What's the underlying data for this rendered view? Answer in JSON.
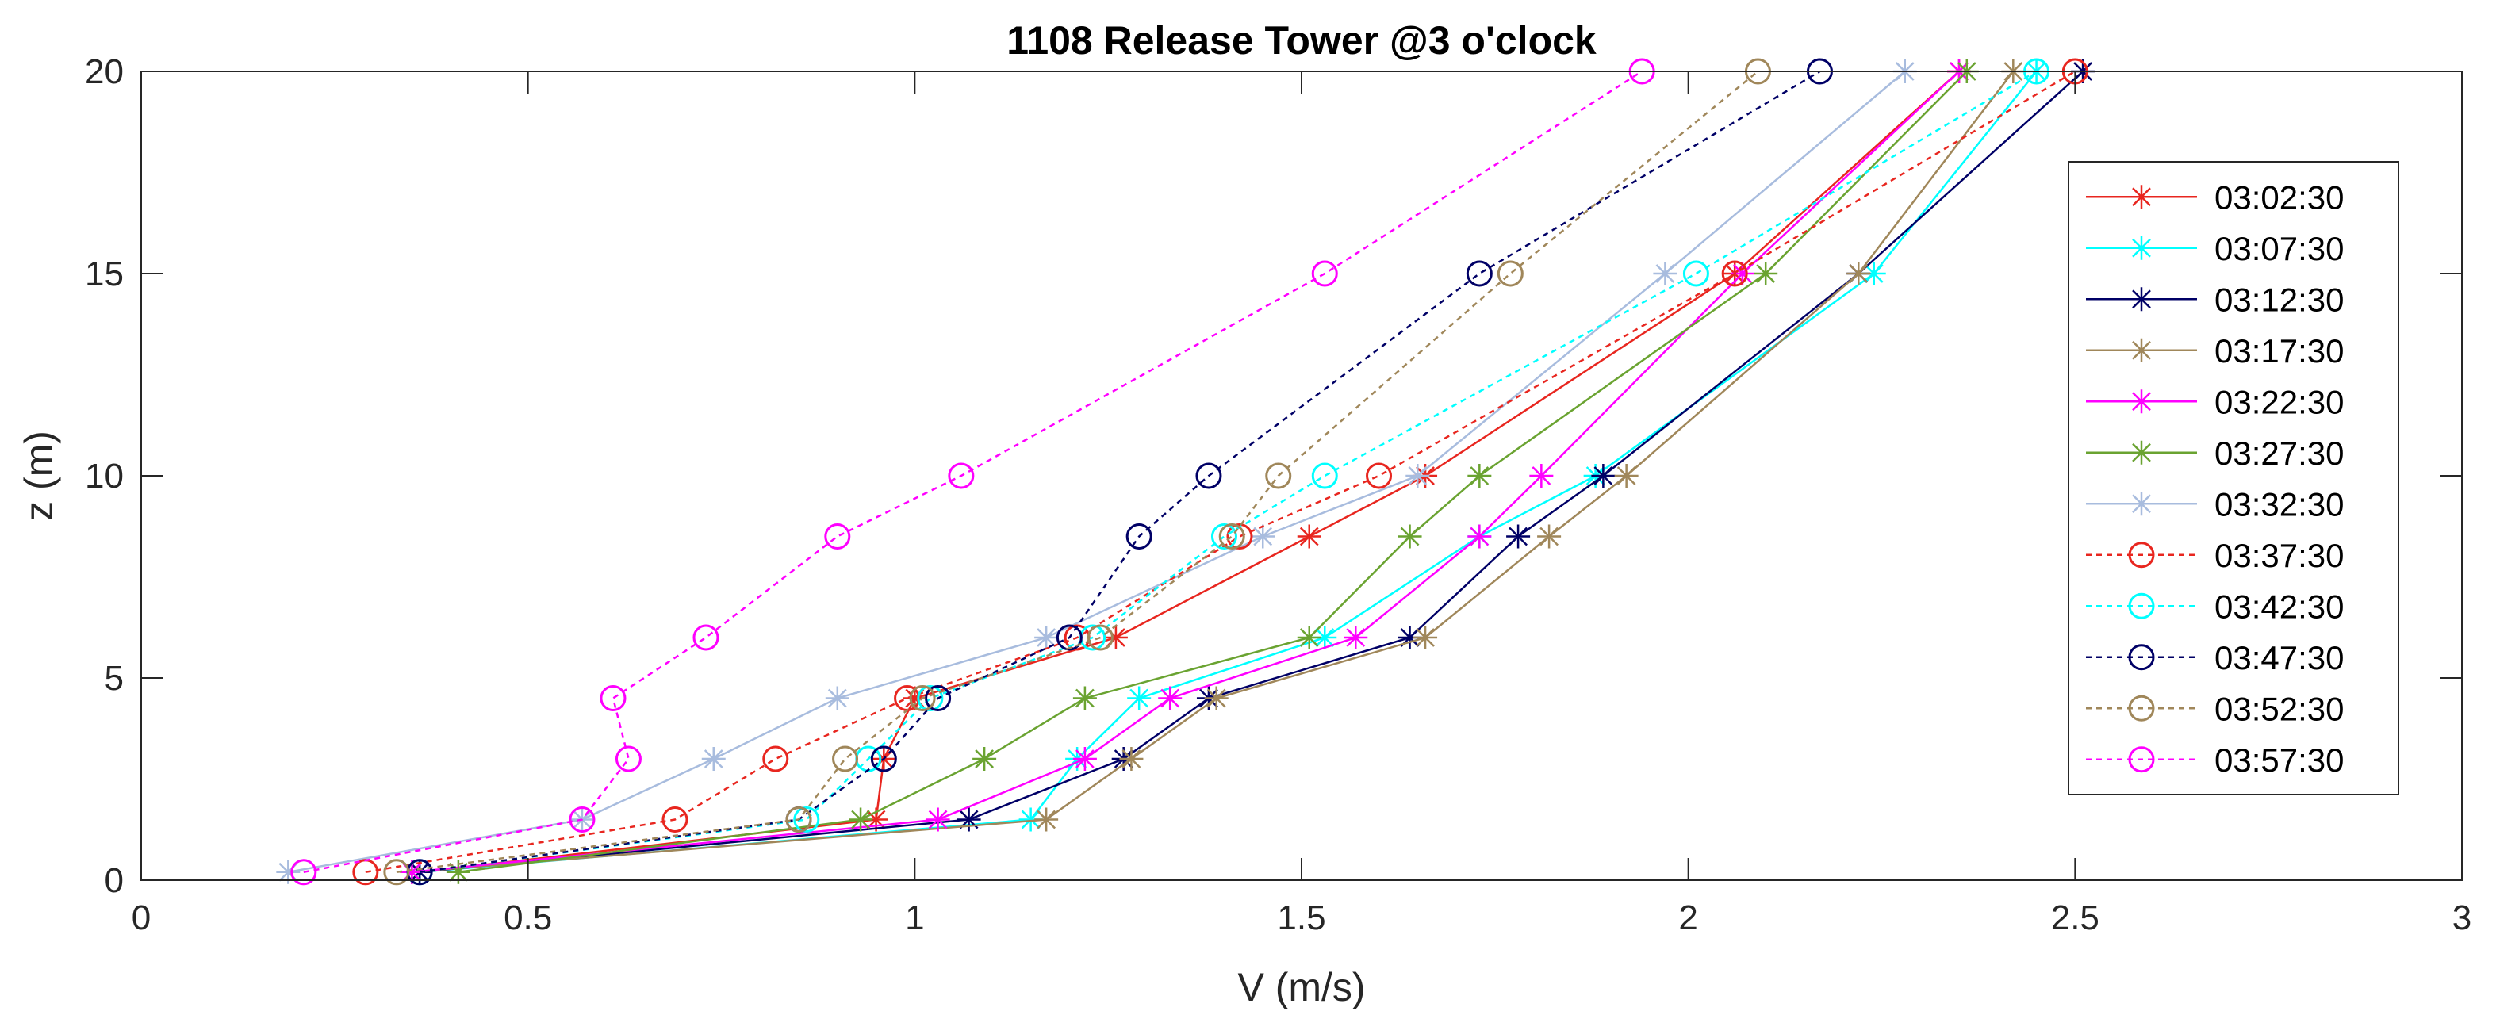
{
  "chart_data": {
    "type": "line",
    "title": "1108 Release Tower @3 o'clock",
    "xlabel": "V (m/s)",
    "ylabel": "z (m)",
    "xlim": [
      0,
      3
    ],
    "ylim": [
      0,
      20
    ],
    "xticks": [
      "0",
      "0.5",
      "1",
      "1.5",
      "2",
      "2.5",
      "3"
    ],
    "yticks": [
      "0",
      "5",
      "10",
      "15",
      "20"
    ],
    "grid": false,
    "legend_position": "right",
    "z": [
      0.2,
      1.5,
      3,
      4.5,
      6,
      8.5,
      10,
      15,
      20
    ],
    "series": [
      {
        "name": "03:02:30",
        "color": "#e8261f",
        "style": "solid",
        "marker": "star",
        "values": [
          0.36,
          0.95,
          0.96,
          1.0,
          1.26,
          1.51,
          1.66,
          2.06,
          2.35
        ]
      },
      {
        "name": "03:07:30",
        "color": "#00ffff",
        "style": "solid",
        "marker": "star",
        "values": [
          0.36,
          1.15,
          1.21,
          1.29,
          1.53,
          1.73,
          1.88,
          2.24,
          2.45
        ]
      },
      {
        "name": "03:12:30",
        "color": "#000066",
        "style": "solid",
        "marker": "star",
        "values": [
          0.36,
          1.07,
          1.27,
          1.38,
          1.64,
          1.78,
          1.89,
          2.22,
          2.51
        ]
      },
      {
        "name": "03:17:30",
        "color": "#a0875a",
        "style": "solid",
        "marker": "star",
        "values": [
          0.35,
          1.17,
          1.28,
          1.39,
          1.66,
          1.82,
          1.92,
          2.22,
          2.42
        ]
      },
      {
        "name": "03:22:30",
        "color": "#ff00ff",
        "style": "solid",
        "marker": "star",
        "values": [
          0.35,
          1.03,
          1.22,
          1.33,
          1.57,
          1.73,
          1.81,
          2.07,
          2.35
        ]
      },
      {
        "name": "03:27:30",
        "color": "#6aa331",
        "style": "solid",
        "marker": "star",
        "values": [
          0.41,
          0.93,
          1.09,
          1.22,
          1.51,
          1.64,
          1.73,
          2.1,
          2.36
        ]
      },
      {
        "name": "03:32:30",
        "color": "#a8bcde",
        "style": "solid",
        "marker": "star",
        "values": [
          0.19,
          0.57,
          0.74,
          0.9,
          1.17,
          1.45,
          1.65,
          1.97,
          2.28
        ]
      },
      {
        "name": "03:37:30",
        "color": "#e8261f",
        "style": "dashed",
        "marker": "circle",
        "values": [
          0.29,
          0.69,
          0.82,
          0.99,
          1.21,
          1.42,
          1.6,
          2.06,
          2.5
        ]
      },
      {
        "name": "03:42:30",
        "color": "#00ffff",
        "style": "dashed",
        "marker": "circle",
        "values": [
          0.36,
          0.86,
          0.94,
          1.02,
          1.23,
          1.4,
          1.53,
          2.01,
          2.45
        ]
      },
      {
        "name": "03:47:30",
        "color": "#000066",
        "style": "dashed",
        "marker": "circle",
        "values": [
          0.36,
          0.85,
          0.96,
          1.03,
          1.2,
          1.29,
          1.38,
          1.73,
          2.17
        ]
      },
      {
        "name": "03:52:30",
        "color": "#a0875a",
        "style": "dashed",
        "marker": "circle",
        "values": [
          0.33,
          0.85,
          0.91,
          1.01,
          1.24,
          1.41,
          1.47,
          1.77,
          2.09
        ]
      },
      {
        "name": "03:57:30",
        "color": "#ff00ff",
        "style": "dashed",
        "marker": "circle",
        "values": [
          0.21,
          0.57,
          0.63,
          0.61,
          0.73,
          0.9,
          1.06,
          1.53,
          1.94
        ]
      }
    ]
  }
}
